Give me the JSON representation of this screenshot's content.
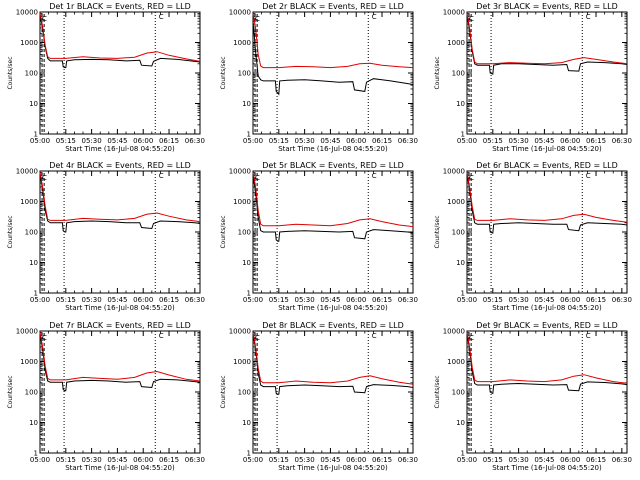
{
  "chart_data": {
    "type": "line",
    "x_tick_labels": [
      "05:00",
      "05:15",
      "05:30",
      "05:45",
      "06:00",
      "06:15",
      "06:30"
    ],
    "x_minutes_from_0500": [
      0,
      15,
      30,
      45,
      60,
      75,
      90
    ],
    "xlim": [
      0,
      93
    ],
    "y_tick_labels": [
      "1",
      "10",
      "100",
      "1000",
      "10000"
    ],
    "ylim": [
      1,
      10000
    ],
    "y_scale": "log",
    "xlabel": "Start Time (16-Jul-08 04:55:20)",
    "ylabel": "Counts/sec",
    "legend_marker": "C",
    "vertical_dotted_lines_at_min": [
      14,
      67
    ],
    "panels": [
      {
        "title": "Det 1r BLACK = Events, RED = LLD",
        "series": [
          {
            "name": "Events",
            "color": "#000000",
            "x": [
              0,
              1.5,
              3,
              4.5,
              6,
              13,
              13.5,
              14.5,
              15,
              15.5,
              20,
              30,
              40,
              50,
              58,
              59,
              65,
              66,
              70,
              80,
              90,
              93
            ],
            "y": [
              8000,
              3000,
              700,
              300,
              250,
              250,
              160,
              150,
              150,
              250,
              270,
              280,
              270,
              250,
              260,
              180,
              170,
              240,
              300,
              280,
              240,
              230
            ]
          },
          {
            "name": "LLD",
            "color": "#e00000",
            "x": [
              0,
              1.5,
              3,
              4.5,
              6,
              15,
              25,
              35,
              45,
              55,
              62,
              68,
              75,
              85,
              93
            ],
            "y": [
              9000,
              3500,
              800,
              340,
              300,
              300,
              340,
              310,
              300,
              330,
              450,
              500,
              380,
              290,
              240
            ]
          }
        ]
      },
      {
        "title": "Det 2r BLACK = Events, RED = LLD",
        "series": [
          {
            "name": "Events",
            "color": "#000000",
            "x": [
              0,
              1.5,
              3,
              4.5,
              6,
              13,
              13.5,
              14.5,
              15,
              15.5,
              20,
              30,
              40,
              50,
              58,
              59,
              65,
              66,
              70,
              80,
              90,
              93
            ],
            "y": [
              5000,
              500,
              80,
              60,
              55,
              55,
              25,
              22,
              20,
              55,
              58,
              60,
              55,
              50,
              52,
              28,
              25,
              50,
              65,
              55,
              45,
              42
            ]
          },
          {
            "name": "LLD",
            "color": "#e00000",
            "x": [
              0,
              1.5,
              3,
              4.5,
              6,
              15,
              25,
              35,
              45,
              55,
              62,
              68,
              75,
              85,
              93
            ],
            "y": [
              9000,
              3000,
              400,
              170,
              150,
              150,
              165,
              160,
              150,
              165,
              200,
              210,
              180,
              160,
              150
            ]
          }
        ]
      },
      {
        "title": "Det 3r BLACK = Events, RED = LLD",
        "series": [
          {
            "name": "Events",
            "color": "#000000",
            "x": [
              0,
              1.5,
              3,
              4.5,
              6,
              13,
              13.5,
              14.5,
              15,
              15.5,
              20,
              30,
              40,
              50,
              58,
              59,
              65,
              66,
              70,
              80,
              90,
              93
            ],
            "y": [
              8000,
              2500,
              500,
              200,
              180,
              180,
              100,
              95,
              92,
              180,
              200,
              200,
              190,
              180,
              190,
              120,
              115,
              200,
              230,
              220,
              200,
              190
            ]
          },
          {
            "name": "LLD",
            "color": "#e00000",
            "x": [
              0,
              1.5,
              3,
              4.5,
              6,
              15,
              25,
              35,
              45,
              55,
              62,
              68,
              75,
              85,
              93
            ],
            "y": [
              9000,
              3000,
              600,
              230,
              200,
              200,
              220,
              210,
              200,
              220,
              280,
              320,
              280,
              230,
              200
            ]
          }
        ]
      },
      {
        "title": "Det 4r BLACK = Events, RED = LLD",
        "series": [
          {
            "name": "Events",
            "color": "#000000",
            "x": [
              0,
              1.5,
              3,
              4.5,
              6,
              13,
              13.5,
              14.5,
              15,
              15.5,
              20,
              30,
              40,
              50,
              58,
              59,
              65,
              66,
              70,
              80,
              90,
              93
            ],
            "y": [
              8000,
              2500,
              500,
              230,
              200,
              200,
              110,
              100,
              100,
              200,
              220,
              230,
              220,
              200,
              200,
              140,
              130,
              190,
              230,
              220,
              200,
              190
            ]
          },
          {
            "name": "LLD",
            "color": "#e00000",
            "x": [
              0,
              1.5,
              3,
              4.5,
              6,
              15,
              25,
              35,
              45,
              55,
              62,
              68,
              75,
              85,
              93
            ],
            "y": [
              9000,
              3000,
              700,
              260,
              240,
              240,
              280,
              260,
              250,
              280,
              380,
              420,
              330,
              250,
              220
            ]
          }
        ]
      },
      {
        "title": "Det 5r BLACK = Events, RED = LLD",
        "series": [
          {
            "name": "Events",
            "color": "#000000",
            "x": [
              0,
              1.5,
              3,
              4.5,
              6,
              13,
              13.5,
              14.5,
              15,
              15.5,
              20,
              30,
              40,
              50,
              58,
              59,
              65,
              66,
              70,
              80,
              90,
              93
            ],
            "y": [
              7000,
              2000,
              300,
              110,
              100,
              100,
              55,
              50,
              50,
              100,
              105,
              110,
              105,
              100,
              105,
              65,
              60,
              100,
              120,
              110,
              100,
              95
            ]
          },
          {
            "name": "LLD",
            "color": "#e00000",
            "x": [
              0,
              1.5,
              3,
              4.5,
              6,
              15,
              25,
              35,
              45,
              55,
              62,
              68,
              75,
              85,
              93
            ],
            "y": [
              9000,
              3000,
              500,
              180,
              160,
              160,
              180,
              170,
              160,
              190,
              250,
              270,
              220,
              170,
              150
            ]
          }
        ]
      },
      {
        "title": "Det 6r BLACK = Events, RED = LLD",
        "series": [
          {
            "name": "Events",
            "color": "#000000",
            "x": [
              0,
              1.5,
              3,
              4.5,
              6,
              13,
              13.5,
              14.5,
              15,
              15.5,
              20,
              30,
              40,
              50,
              58,
              59,
              65,
              66,
              70,
              80,
              90,
              93
            ],
            "y": [
              8000,
              2500,
              500,
              200,
              180,
              180,
              100,
              95,
              92,
              180,
              190,
              200,
              190,
              180,
              180,
              120,
              110,
              170,
              200,
              190,
              180,
              170
            ]
          },
          {
            "name": "LLD",
            "color": "#e00000",
            "x": [
              0,
              1.5,
              3,
              4.5,
              6,
              15,
              25,
              35,
              45,
              55,
              62,
              68,
              75,
              85,
              93
            ],
            "y": [
              9000,
              3000,
              700,
              260,
              240,
              240,
              270,
              250,
              240,
              270,
              350,
              380,
              300,
              240,
              210
            ]
          }
        ]
      },
      {
        "title": "Det 7r BLACK = Events, RED = LLD",
        "series": [
          {
            "name": "Events",
            "color": "#000000",
            "x": [
              0,
              1.5,
              3,
              4.5,
              6,
              13,
              13.5,
              14.5,
              15,
              15.5,
              20,
              30,
              40,
              50,
              58,
              59,
              65,
              66,
              70,
              80,
              90,
              93
            ],
            "y": [
              8000,
              2500,
              500,
              230,
              210,
              210,
              120,
              110,
              110,
              210,
              230,
              240,
              230,
              210,
              220,
              150,
              140,
              220,
              260,
              250,
              220,
              210
            ]
          },
          {
            "name": "LLD",
            "color": "#e00000",
            "x": [
              0,
              1.5,
              3,
              4.5,
              6,
              15,
              25,
              35,
              45,
              55,
              62,
              68,
              75,
              85,
              93
            ],
            "y": [
              9000,
              3000,
              700,
              280,
              250,
              250,
              300,
              280,
              260,
              300,
              420,
              470,
              360,
              260,
              230
            ]
          }
        ]
      },
      {
        "title": "Det 8r BLACK = Events, RED = LLD",
        "series": [
          {
            "name": "Events",
            "color": "#000000",
            "x": [
              0,
              1.5,
              3,
              4.5,
              6,
              13,
              13.5,
              14.5,
              15,
              15.5,
              20,
              30,
              40,
              50,
              58,
              59,
              65,
              66,
              70,
              80,
              90,
              93
            ],
            "y": [
              8000,
              2500,
              400,
              170,
              150,
              150,
              90,
              85,
              85,
              150,
              160,
              170,
              160,
              150,
              155,
              100,
              95,
              150,
              175,
              165,
              150,
              140
            ]
          },
          {
            "name": "LLD",
            "color": "#e00000",
            "x": [
              0,
              1.5,
              3,
              4.5,
              6,
              15,
              25,
              35,
              45,
              55,
              62,
              68,
              75,
              85,
              93
            ],
            "y": [
              9000,
              3000,
              600,
              230,
              200,
              200,
              230,
              210,
              200,
              230,
              300,
              340,
              270,
              210,
              180
            ]
          }
        ]
      },
      {
        "title": "Det 9r BLACK = Events, RED = LLD",
        "series": [
          {
            "name": "Events",
            "color": "#000000",
            "x": [
              0,
              1.5,
              3,
              4.5,
              6,
              13,
              13.5,
              14.5,
              15,
              15.5,
              20,
              30,
              40,
              50,
              58,
              59,
              65,
              66,
              70,
              80,
              90,
              93
            ],
            "y": [
              8000,
              2500,
              450,
              190,
              170,
              170,
              100,
              92,
              90,
              170,
              180,
              190,
              180,
              170,
              175,
              115,
              110,
              180,
              215,
              205,
              185,
              175
            ]
          },
          {
            "name": "LLD",
            "color": "#e00000",
            "x": [
              0,
              1.5,
              3,
              4.5,
              6,
              15,
              25,
              35,
              45,
              55,
              62,
              68,
              75,
              85,
              93
            ],
            "y": [
              9000,
              3000,
              650,
              250,
              220,
              220,
              250,
              230,
              220,
              250,
              330,
              370,
              290,
              220,
              195
            ]
          }
        ]
      }
    ]
  }
}
